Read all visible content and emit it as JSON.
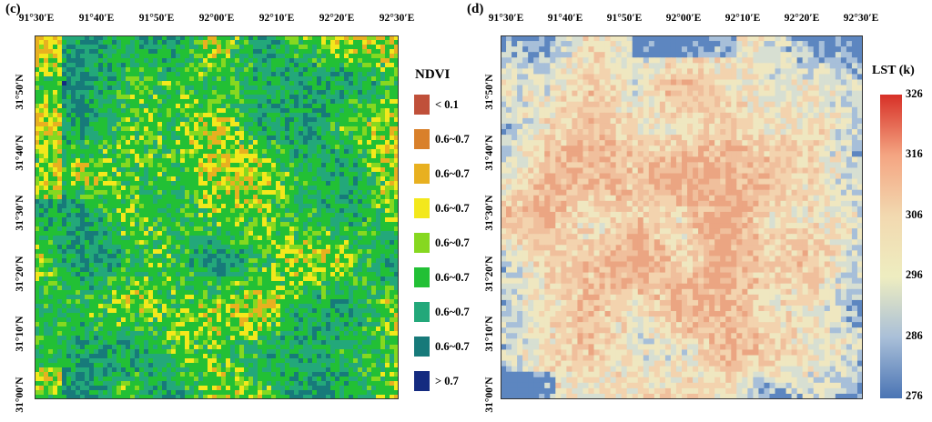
{
  "panel_c": {
    "label": "(c)",
    "lon_ticks": [
      "91°30′E",
      "91°40′E",
      "91°50′E",
      "92°00′E",
      "92°10′E",
      "92°20′E",
      "92°30′E"
    ],
    "lat_ticks": [
      "31°50′N",
      "31°40′N",
      "31°30′N",
      "31°20′N",
      "31°10′N",
      "31°00′N"
    ],
    "legend_title": "NDVI",
    "legend": [
      {
        "label": "< 0.1",
        "color": "#c0503a"
      },
      {
        "label": "0.6~0.7",
        "color": "#d9802a"
      },
      {
        "label": "0.6~0.7",
        "color": "#e8b020"
      },
      {
        "label": "0.6~0.7",
        "color": "#f3e81c"
      },
      {
        "label": "0.6~0.7",
        "color": "#86d820"
      },
      {
        "label": "0.6~0.7",
        "color": "#22c035"
      },
      {
        "label": "0.6~0.7",
        "color": "#23a87a"
      },
      {
        "label": "0.6~0.7",
        "color": "#177a7a"
      },
      {
        "label": "> 0.7",
        "color": "#142b80"
      }
    ]
  },
  "panel_d": {
    "label": "(d)",
    "lon_ticks": [
      "91°30′E",
      "91°40′E",
      "91°50′E",
      "92°00′E",
      "92°10′E",
      "92°20′E",
      "92°30′E"
    ],
    "lat_ticks": [
      "31°50′N",
      "31°40′N",
      "31°30′N",
      "31°20′N",
      "31°10′N",
      "31°00′N"
    ],
    "colorbar_title": "LST (k)",
    "colorbar_ticks": [
      "326",
      "316",
      "306",
      "296",
      "286",
      "276"
    ],
    "colorbar_colors": [
      "#d73027",
      "#f4a582",
      "#f2d9b0",
      "#eeedc0",
      "#a9bfd8",
      "#4a74b4"
    ]
  }
}
